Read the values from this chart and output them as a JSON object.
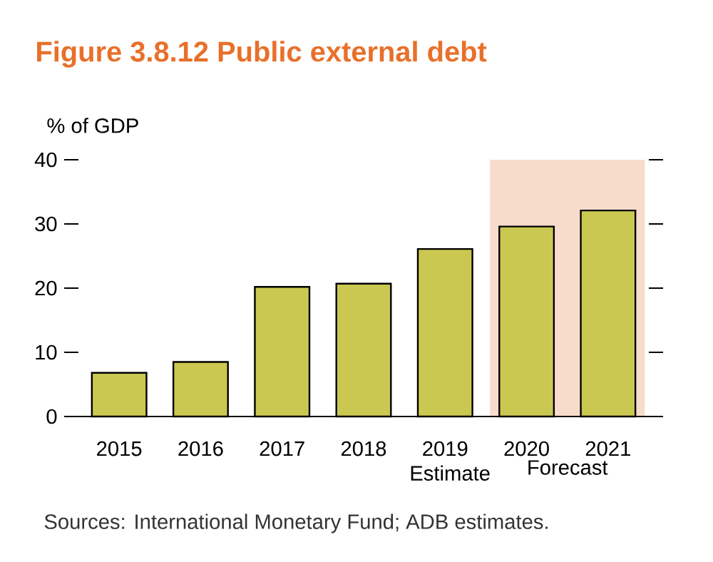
{
  "chart_data": {
    "type": "bar",
    "title": "Figure 3.8.12  Public external debt",
    "ylabel": "% of GDP",
    "categories": [
      "2015",
      "2016",
      "2017",
      "2018",
      "2019 Estimate",
      "2020",
      "2021"
    ],
    "values": [
      6.8,
      8.5,
      20.2,
      20.7,
      26.1,
      29.6,
      32.1
    ],
    "color": "#cbc852",
    "ylim": [
      0,
      40
    ],
    "yticks": [
      0,
      10,
      20,
      30,
      40
    ],
    "bands": [
      {
        "axis": "x",
        "from": "2020",
        "to": "2021",
        "label": "Forecast",
        "color": "#f8dccb"
      }
    ],
    "annotations": [
      "Sources: International Monetary Fund; ADB estimates."
    ]
  }
}
